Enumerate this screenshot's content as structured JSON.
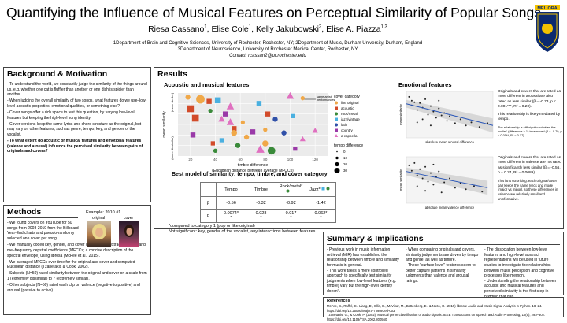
{
  "title": "Quantifying the Influence of Musical Features on Perceptual Similarity of Popular Songs",
  "authors": [
    {
      "name": "Riesa Cassano",
      "sup": "1"
    },
    {
      "name": "Elise Cole",
      "sup": "1"
    },
    {
      "name": "Kelly Jakubowski",
      "sup": "2"
    },
    {
      "name": "Elise A. Piazza",
      "sup": "1,3"
    }
  ],
  "affiliations": [
    "1Department of Brain and Cognitive Sciences, University of Rochester, Rochester, NY; 2Department of Music, Durham University, Durham, England",
    "3Department of Neuroscience, University of Rochester Medical Center, Rochester, NY",
    "Contact: rcassan2@ur.rochester.edu"
  ],
  "logo_text": "MELIORA",
  "background": {
    "heading": "Background & Motivation",
    "items": [
      "- To understand the world, we constantly judge the similarity of the things around us, e.g. whether one cat is fluffier than another or one dish is spicier than another.",
      "- When judging the overall similarity of two songs, what features do we use–low-level acoustic properties, emotional qualities, or something else?",
      "- Cover songs offer a rich space to test this question, by varying low-level features but keeping the high-level song identity.",
      "- Cover versions keep the same lyrics and chord structure as the original, but may vary on other features, such as genre, tempo, key, and gender of the vocalist."
    ],
    "question": "- To what extent do acoustic or musical features and emotional features (valence and arousal) influence the perceived similarity between pairs of originals and covers?"
  },
  "methods": {
    "heading": "Methods",
    "example_label": "Example: 2010 #1",
    "original_label": "original",
    "cover_label": "cover",
    "items": [
      "- We found covers on YouTube for 50 songs from 2008-2019 from the Billboard Year-End charts and pseudo-randomly selected one cover per song.",
      "- We manually coded key, gender, and cover category. We extracted tempo and mel-frequency cepstral coefficients (MFCCs; a concise description of the spectral envelope) using librosa (McFee et al., 2015).",
      "- We averaged MFCCs over time for the original and cover and computed Euclidean distance (Tzanetakis & Cook, 2002).",
      "- Subjects (N=50) rated similarity between the original and cover on a scale from 1 (extremely dissimilar) to 7 (extremely similar).",
      "- Other subjects (N=50) rated each clip on valence (negative to positive) and arousal (passive to active)."
    ]
  },
  "results": {
    "heading": "Results",
    "acoustic_heading": "Acoustic and musical features",
    "emotional_heading": "Emotional features",
    "model_heading": "Best model of similarity: tempo, timbre, and cover category"
  },
  "chart_data": [
    {
      "type": "scatter",
      "xlabel": "timbre difference",
      "xlabel2": "(Euclidean distance between average MFCCs)",
      "ylabel": "mean similarity",
      "y_top_label": "(more similar)",
      "y_bottom_label": "(more dissimilar)",
      "x_ticks": [
        20,
        40,
        60,
        80,
        100,
        120
      ],
      "xlim": [
        10,
        130
      ],
      "ylim": [
        1,
        7
      ],
      "annotation": "same-artist\nperformances",
      "legend_title": "cover category",
      "categories": [
        {
          "name": "like original",
          "color": "#f0a848",
          "shape": "circle"
        },
        {
          "name": "acoustic",
          "color": "#d24b2a",
          "shape": "square"
        },
        {
          "name": "rock/metal",
          "color": "#3a8a3a",
          "shape": "circle"
        },
        {
          "name": "jazz/vintage",
          "color": "#4ab0e0",
          "shape": "square"
        },
        {
          "name": "latin",
          "color": "#3050a8",
          "shape": "circle"
        },
        {
          "name": "country",
          "color": "#9a3aa8",
          "shape": "square"
        },
        {
          "name": "a cappella",
          "color": "#e070c0",
          "shape": "triangle"
        }
      ],
      "size_legend_title": "tempo difference",
      "size_legend": [
        0,
        10,
        20,
        30
      ],
      "points": [
        {
          "x": 18,
          "y": 6.6,
          "cat": 0,
          "t": 4
        },
        {
          "x": 28,
          "y": 6.4,
          "cat": 0,
          "t": 8
        },
        {
          "x": 35,
          "y": 6.2,
          "cat": 1,
          "t": 4
        },
        {
          "x": 42,
          "y": 6.3,
          "cat": 3,
          "t": 5
        },
        {
          "x": 52,
          "y": 5.7,
          "cat": 6,
          "t": 6
        },
        {
          "x": 75,
          "y": 6.0,
          "cat": 3,
          "t": 4
        },
        {
          "x": 100,
          "y": 6.7,
          "cat": 6,
          "t": 6
        },
        {
          "x": 110,
          "y": 6.5,
          "cat": 0,
          "t": 3
        },
        {
          "x": 20,
          "y": 5.5,
          "cat": 1,
          "t": 6
        },
        {
          "x": 36,
          "y": 5.3,
          "cat": 2,
          "t": 3
        },
        {
          "x": 48,
          "y": 5.0,
          "cat": 5,
          "t": 4
        },
        {
          "x": 82,
          "y": 5.0,
          "cat": 1,
          "t": 4
        },
        {
          "x": 24,
          "y": 4.6,
          "cat": 1,
          "t": 6
        },
        {
          "x": 45,
          "y": 4.5,
          "cat": 6,
          "t": 5
        },
        {
          "x": 52,
          "y": 4.2,
          "cat": 6,
          "t": 6
        },
        {
          "x": 62,
          "y": 4.2,
          "cat": 0,
          "t": 3
        },
        {
          "x": 88,
          "y": 4.5,
          "cat": 4,
          "t": 4
        },
        {
          "x": 102,
          "y": 4.8,
          "cat": 3,
          "t": 3
        },
        {
          "x": 80,
          "y": 3.5,
          "cat": 0,
          "t": 3
        },
        {
          "x": 55,
          "y": 3.6,
          "cat": 1,
          "t": 4
        },
        {
          "x": 55,
          "y": 3.2,
          "cat": 0,
          "t": 5
        },
        {
          "x": 70,
          "y": 3.3,
          "cat": 5,
          "t": 4
        },
        {
          "x": 95,
          "y": 3.2,
          "cat": 4,
          "t": 4
        },
        {
          "x": 120,
          "y": 3.4,
          "cat": 6,
          "t": 4
        },
        {
          "x": 22,
          "y": 3.0,
          "cat": 5,
          "t": 4
        },
        {
          "x": 65,
          "y": 2.8,
          "cat": 0,
          "t": 4
        },
        {
          "x": 45,
          "y": 2.5,
          "cat": 3,
          "t": 3
        },
        {
          "x": 80,
          "y": 2.2,
          "cat": 0,
          "t": 5
        },
        {
          "x": 110,
          "y": 2.6,
          "cat": 6,
          "t": 4
        },
        {
          "x": 38,
          "y": 2.2,
          "cat": 1,
          "t": 3
        },
        {
          "x": 58,
          "y": 2.0,
          "cat": 2,
          "t": 4
        },
        {
          "x": 76,
          "y": 1.6,
          "cat": 6,
          "t": 7
        },
        {
          "x": 85,
          "y": 1.5,
          "cat": 2,
          "t": 7
        },
        {
          "x": 104,
          "y": 1.7,
          "cat": 5,
          "t": 3
        },
        {
          "x": 40,
          "y": 1.5,
          "cat": 2,
          "t": 3
        }
      ]
    },
    {
      "type": "scatter",
      "xlabel": "absolute mean arousal difference",
      "ylabel": "mean similarity",
      "points": [
        [
          0.05,
          6.3
        ],
        [
          0.1,
          5.8
        ],
        [
          0.1,
          5.2
        ],
        [
          0.15,
          5.6
        ],
        [
          0.2,
          4.6
        ],
        [
          0.25,
          5.5
        ],
        [
          0.3,
          4.9
        ],
        [
          0.35,
          6.0
        ],
        [
          0.4,
          4.0
        ],
        [
          0.45,
          5.1
        ],
        [
          0.5,
          4.4
        ],
        [
          0.55,
          3.6
        ],
        [
          0.6,
          4.8
        ],
        [
          0.65,
          3.9
        ],
        [
          0.7,
          4.2
        ],
        [
          0.75,
          3.2
        ],
        [
          0.8,
          3.8
        ],
        [
          0.9,
          2.9
        ],
        [
          1.0,
          3.4
        ],
        [
          1.1,
          2.6
        ],
        [
          1.2,
          3.0
        ],
        [
          1.35,
          2.4
        ],
        [
          1.5,
          2.9
        ],
        [
          0.3,
          3.4
        ],
        [
          0.6,
          5.8
        ],
        [
          0.2,
          3.0
        ],
        [
          0.45,
          2.6
        ]
      ],
      "fit": [
        [
          0,
          5.4
        ],
        [
          1.6,
          2.6
        ]
      ]
    },
    {
      "type": "scatter",
      "xlabel": "absolute mean valence difference",
      "ylabel": "mean similarity",
      "points": [
        [
          0.05,
          5.9
        ],
        [
          0.1,
          5.2
        ],
        [
          0.15,
          6.2
        ],
        [
          0.2,
          4.6
        ],
        [
          0.25,
          5.4
        ],
        [
          0.3,
          4.2
        ],
        [
          0.35,
          5.7
        ],
        [
          0.4,
          3.8
        ],
        [
          0.45,
          4.9
        ],
        [
          0.5,
          3.4
        ],
        [
          0.55,
          4.4
        ],
        [
          0.6,
          5.1
        ],
        [
          0.7,
          3.7
        ],
        [
          0.8,
          4.2
        ],
        [
          0.9,
          3.0
        ],
        [
          1.0,
          3.6
        ],
        [
          1.1,
          2.8
        ],
        [
          1.25,
          3.2
        ],
        [
          1.4,
          2.5
        ],
        [
          0.2,
          3.2
        ],
        [
          0.35,
          2.6
        ],
        [
          0.65,
          2.4
        ],
        [
          0.5,
          6.0
        ]
      ],
      "fit": [
        [
          0,
          5.1
        ],
        [
          1.5,
          3.0
        ]
      ]
    },
    {
      "type": "table",
      "columns": [
        "",
        "Tempo",
        "Timbre",
        "Rock/metal*",
        "Jazz*"
      ],
      "rows": [
        [
          "β",
          "-0.56",
          "-0.32",
          "-0.92",
          "-1.42"
        ],
        [
          "p",
          "0.0074*",
          "0.028",
          "0.017",
          "0.062*"
        ]
      ],
      "note_row2": [
        "",
        "*",
        "*",
        "*",
        "*"
      ]
    }
  ],
  "arousal_text": {
    "main": "Originals and covers that are rated as more different in arousal are also rated as less similar (β = -0.73, p < 0.001***, R² = 0.20).",
    "extra": "This relationship is likely mediated by tempo.",
    "small": "The relationship is still significant when the 'outlier' (difference > 1) is removed (β = -0.79, p < 0.01**, R² = 0.17)."
  },
  "valence_text": {
    "main": "Originals and covers that are rated as more different in valence are not rated as significantly less similar (β = -0.56, p = 0.24, R² = 0.0089).",
    "extra": "This isn't surprising: each original/cover pair keeps the same lyrics and mode (major vs minor), so these differences in valence are relatively small and uninformative."
  },
  "model_notes": [
    "*compared to category 1 (pop or like original)",
    "Not significant: key, gender of the vocalist, any interactions between features"
  ],
  "summary": {
    "heading": "Summary & Implications",
    "col1": "- Previous work in music information retrieval (MIR) has established the relationship between timbre and similarity for music in general.\n- This work takes a more controlled approach to specifically test similarity judgments when low-level features (e.g. timbre) vary but the high-level identity doesn't.",
    "col2": "- When comparing originals and covers, similarity judgements are driven by tempo and genre, as well as timbre.\n- These \"surface-level\" features seem to better capture patterns in similarity judgments than valence and arousal ratings.",
    "col3": "- The dissociation between low-level features and high-level abstract representations will be used in future studies to investigate the relationships between music perception and cognitive processes like memory.\n- Understanding the relationship between acoustic and musical features and perceived similarity is the first step in bridging that gap."
  },
  "references": {
    "heading": "References",
    "items": [
      "McFee, B., Raffel, C., Liang, D., Ellis, D., McVicar, M., Battenberg, E., & Nieto, O. (2015) librosa: Audio and Music Signal Analysis in Python. 18–24.",
      "https://doi.org/10.25080/Majora-7b98e3ed-003",
      "Tzanetakis, G., & Cook, P. (2002). Musical genre classification of audio signals. IEEE Transactions on Speech and Audio Processing, 10(5), 293–302.",
      "https://doi.org/10.1109/TSA.2002.800560"
    ]
  },
  "colors": {
    "fit_line": "#2a56b8",
    "ribbon": "#cfcfcf",
    "border": "#444444"
  }
}
